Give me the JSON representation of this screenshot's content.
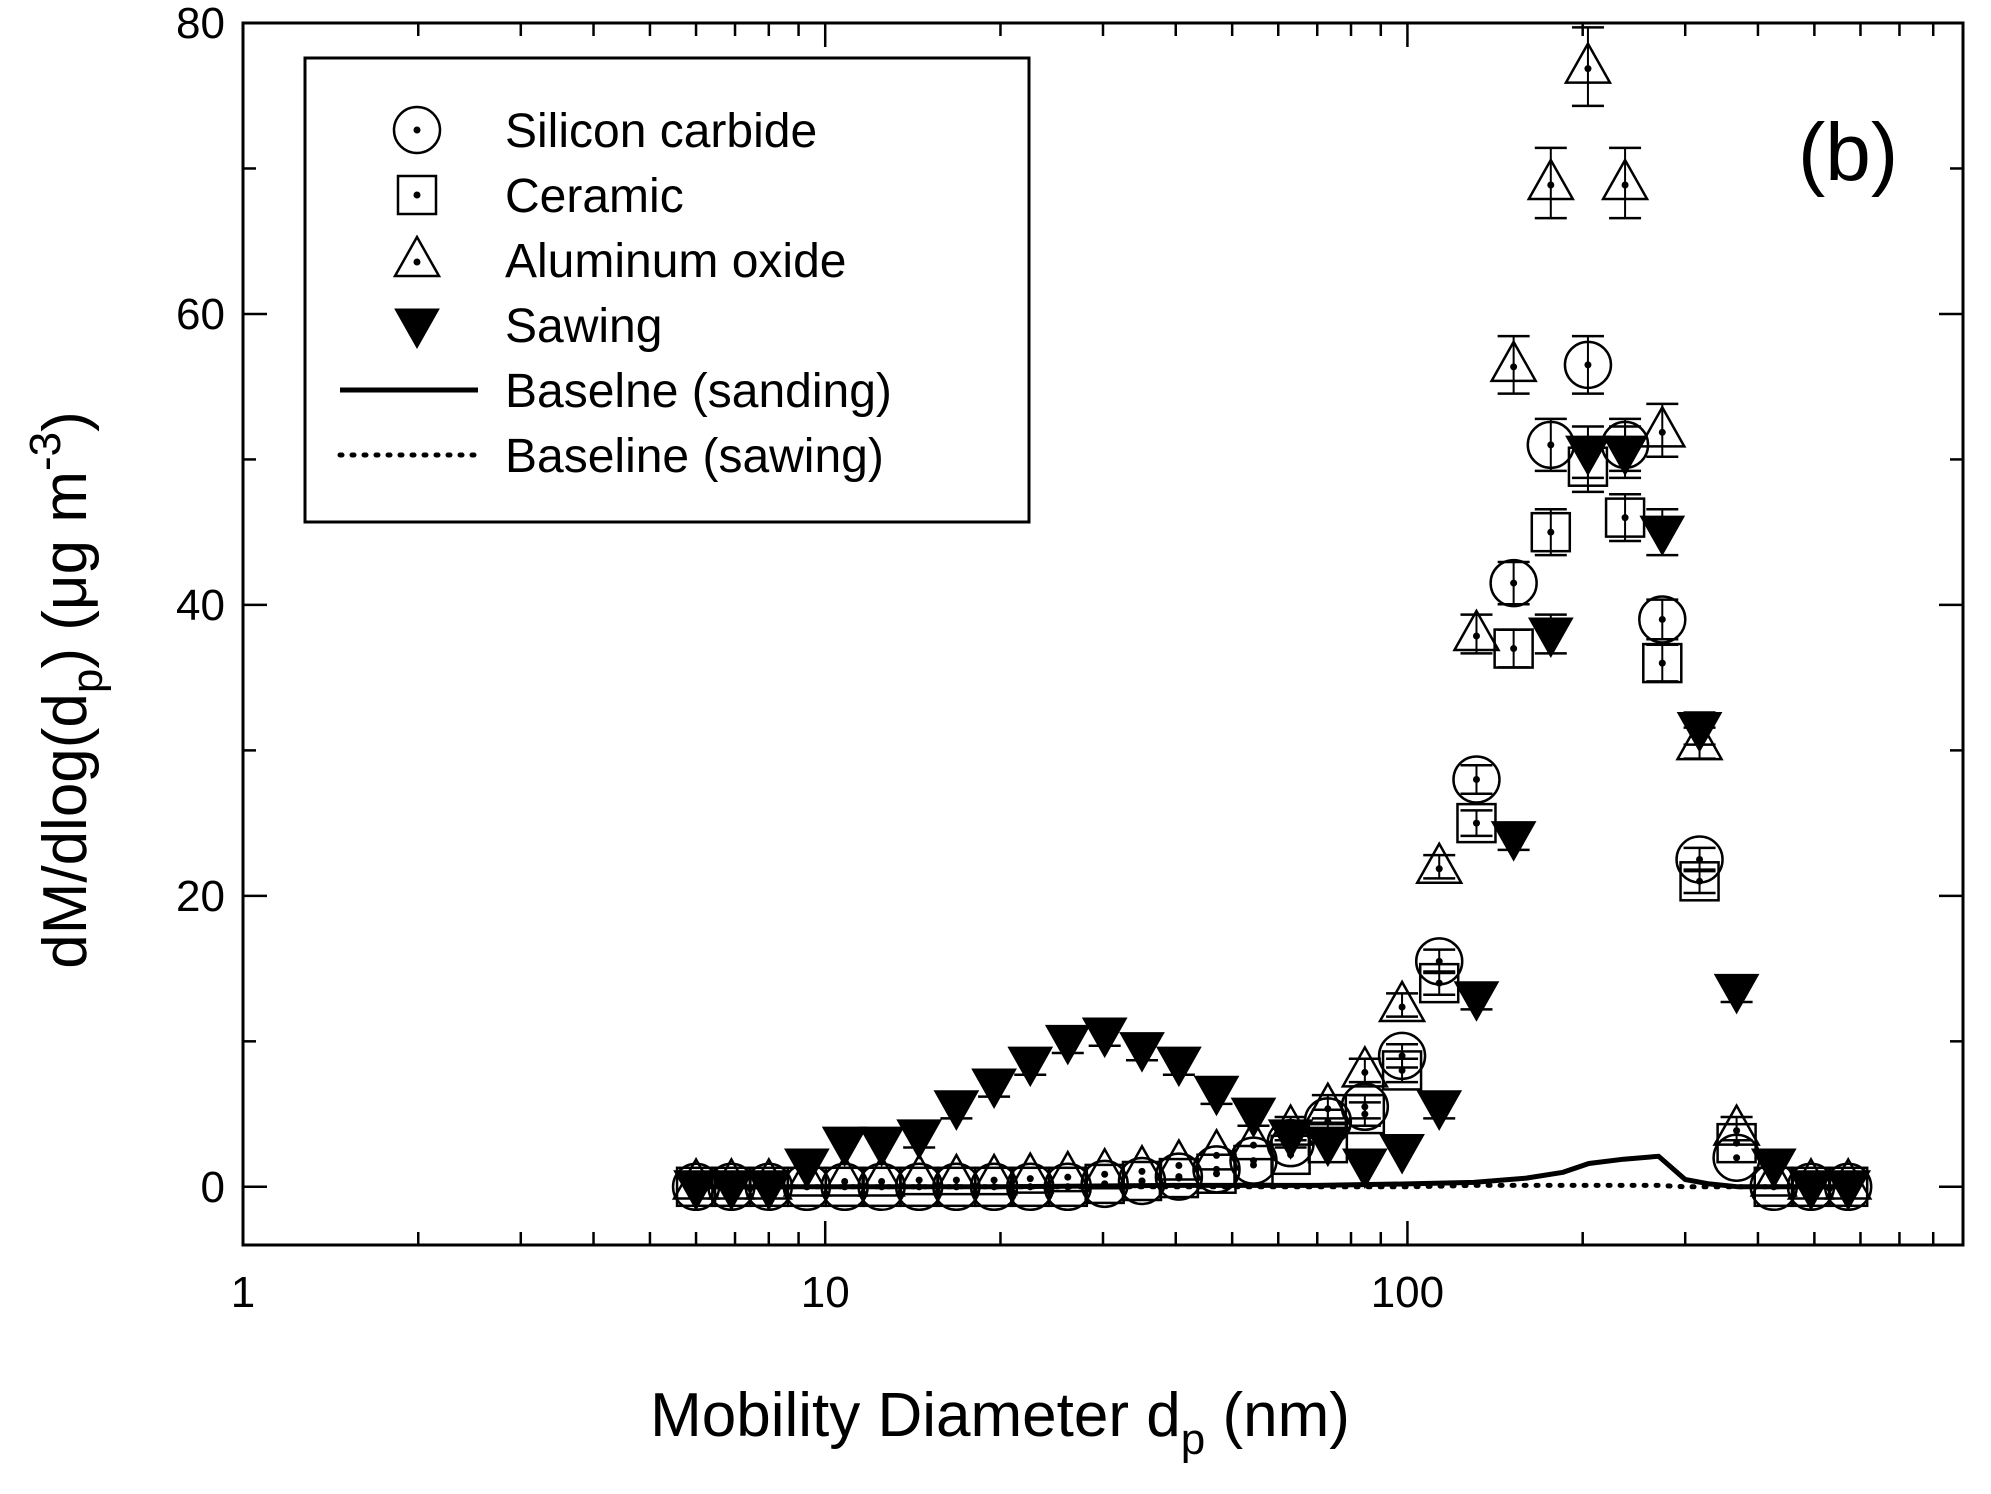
{
  "chart_data": {
    "type": "scatter",
    "panel_label": "(b)",
    "xlabel": {
      "main": "Mobility Diameter d",
      "sub": "p",
      "tail": " (nm)"
    },
    "ylabel": {
      "a": "dM/dlog(d",
      "sub": "p",
      "b": ") (μg m",
      "sup": "-3",
      "c": ")"
    },
    "x_scale": "log",
    "xlim": [
      1,
      900
    ],
    "ylim": [
      -4,
      80
    ],
    "x_ticks": [
      1,
      10,
      100
    ],
    "x_tick_labels": [
      "1",
      "10",
      "100"
    ],
    "y_ticks": [
      0,
      20,
      40,
      60,
      80
    ],
    "y_tick_labels": [
      "0",
      "20",
      "40",
      "60",
      "80"
    ],
    "legend_position": "top-left",
    "legend": [
      {
        "label": "Silicon carbide",
        "marker": "circle-dot"
      },
      {
        "label": "Ceramic",
        "marker": "square-dot"
      },
      {
        "label": "Aluminum oxide",
        "marker": "triangle-dot"
      },
      {
        "label": "Sawing",
        "marker": "triangle-down-filled"
      },
      {
        "label": "Baselne (sanding)",
        "marker": "solid-line"
      },
      {
        "label": "Baseline (sawing)",
        "marker": "dotted-line"
      }
    ],
    "series": [
      {
        "name": "Silicon carbide",
        "marker": "circle-dot",
        "x": [
          6,
          6.9,
          8,
          9.3,
          10.8,
          12.5,
          14.5,
          16.8,
          19.5,
          22.5,
          26.1,
          30.2,
          35,
          40.5,
          47,
          54.4,
          63,
          73,
          84.5,
          97.9,
          113.4,
          131.4,
          152.2,
          176.3,
          204.2,
          236.5,
          274,
          317.5,
          367.6,
          425.8,
          493.3,
          571.5
        ],
        "y": [
          0,
          0,
          0,
          0,
          0,
          0,
          0,
          0,
          0,
          0,
          0,
          0.2,
          0.4,
          0.7,
          1.2,
          1.8,
          3,
          4.5,
          5.5,
          9,
          15.5,
          28,
          41.5,
          51,
          56.5,
          51,
          39,
          22.5,
          2,
          0,
          0,
          0
        ]
      },
      {
        "name": "Ceramic",
        "marker": "square-dot",
        "x": [
          6,
          6.9,
          8,
          9.3,
          10.8,
          12.5,
          14.5,
          16.8,
          19.5,
          22.5,
          26.1,
          30.2,
          35,
          40.5,
          47,
          54.4,
          63,
          73,
          84.5,
          97.9,
          113.4,
          131.4,
          152.2,
          176.3,
          204.2,
          236.5,
          274,
          317.5,
          367.6,
          425.8,
          493.3,
          571.5
        ],
        "y": [
          0,
          0,
          0,
          0,
          0,
          0,
          0,
          0,
          0,
          0,
          0,
          0.2,
          0.4,
          0.6,
          0.9,
          1.5,
          2.2,
          3,
          5,
          8,
          14,
          25,
          37,
          45,
          49.5,
          46,
          36,
          21,
          3,
          0,
          0,
          0
        ]
      },
      {
        "name": "Aluminum oxide",
        "marker": "triangle-dot",
        "x": [
          6,
          6.9,
          8,
          9.3,
          10.8,
          12.5,
          14.5,
          16.8,
          19.5,
          22.5,
          26.1,
          30.2,
          35,
          40.5,
          47,
          54.4,
          63,
          73,
          84.5,
          97.9,
          113.4,
          131.4,
          152.2,
          176.3,
          204.2,
          236.5,
          274,
          317.5,
          367.6,
          425.8,
          493.3,
          571.5
        ],
        "y": [
          0.3,
          0.3,
          0.3,
          0.5,
          0.5,
          0.5,
          0.6,
          0.6,
          0.6,
          0.7,
          0.8,
          1,
          1.2,
          1.6,
          2.3,
          3,
          4,
          5.5,
          8,
          12.5,
          22,
          38,
          56.5,
          69,
          77,
          69,
          52,
          30.5,
          4,
          0.5,
          0.3,
          0.3
        ]
      },
      {
        "name": "Sawing",
        "marker": "triangle-down-filled",
        "x": [
          6,
          6.9,
          8,
          9.3,
          10.8,
          12.5,
          14.5,
          16.8,
          19.5,
          22.5,
          26.1,
          30.2,
          35,
          40.5,
          47,
          54.4,
          63,
          73,
          84.5,
          97.9,
          113.4,
          131.4,
          152.2,
          176.3,
          204.2,
          236.5,
          274,
          317.5,
          367.6,
          425.8,
          493.3,
          571.5
        ],
        "y": [
          0,
          0,
          0,
          1.5,
          3,
          3,
          3.5,
          5.5,
          7,
          8.5,
          10,
          10.5,
          9.5,
          8.5,
          6.5,
          5,
          3.5,
          3,
          1.5,
          2.5,
          5.5,
          13,
          24,
          38,
          50.5,
          50.5,
          45,
          31.5,
          13.5,
          1.5,
          0,
          0
        ]
      },
      {
        "name": "Baselne (sanding)",
        "marker": "solid-line",
        "x": [
          6,
          10,
          20,
          40,
          70,
          100,
          130,
          160,
          185,
          205,
          235,
          270,
          300,
          330,
          370,
          420,
          500,
          580
        ],
        "y": [
          0,
          0,
          0,
          0.1,
          0.1,
          0.2,
          0.3,
          0.6,
          1,
          1.6,
          1.9,
          2.1,
          0.5,
          0.2,
          0,
          0,
          0,
          0
        ]
      },
      {
        "name": "Baseline (sawing)",
        "marker": "dotted-line",
        "x": [
          6,
          10,
          20,
          40,
          70,
          100,
          130,
          160,
          185,
          205,
          235,
          270,
          300,
          330,
          370,
          420,
          500,
          580
        ],
        "y": [
          0,
          0,
          0,
          0,
          0,
          0,
          0.1,
          0.1,
          0.1,
          0.1,
          0.1,
          0.1,
          0,
          0,
          0,
          0,
          0,
          0
        ]
      }
    ]
  }
}
